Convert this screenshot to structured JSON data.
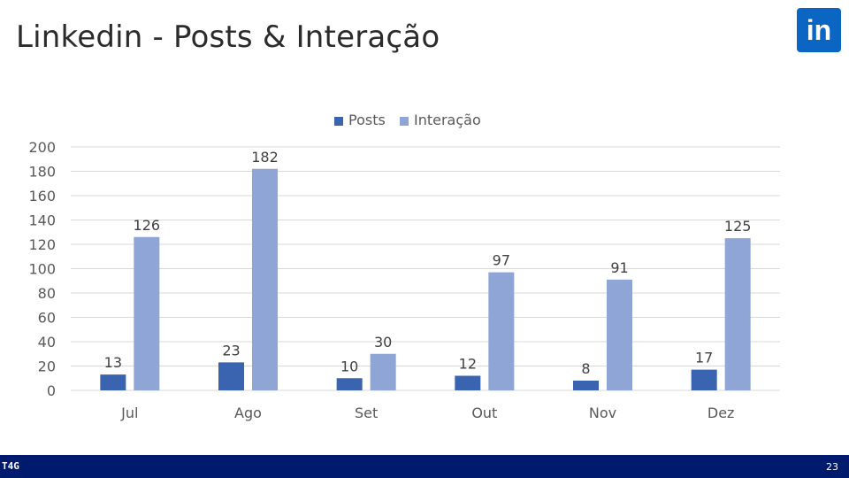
{
  "slide": {
    "title": "Linkedin - Posts & Interação",
    "logo_text": "in",
    "footer_logo": "T4G",
    "page_number": "23"
  },
  "colors": {
    "posts": "#3a63b0",
    "interacao": "#8fa5d6",
    "footer_bg": "#001a6e",
    "logo_bg": "#0a66c2"
  },
  "chart_data": {
    "type": "bar",
    "title": "",
    "xlabel": "",
    "ylabel": "",
    "categories": [
      "Jul",
      "Ago",
      "Set",
      "Out",
      "Nov",
      "Dez"
    ],
    "series": [
      {
        "name": "Posts",
        "values": [
          13,
          23,
          10,
          12,
          8,
          17
        ]
      },
      {
        "name": "Interação",
        "values": [
          126,
          182,
          30,
          97,
          91,
          125
        ]
      }
    ],
    "ylim": [
      0,
      200
    ],
    "yticks": [
      "0",
      "20",
      "40",
      "60",
      "80",
      "100",
      "120",
      "140",
      "160",
      "180",
      "200"
    ],
    "grid": true,
    "legend": "top-center",
    "data_labels": true
  }
}
